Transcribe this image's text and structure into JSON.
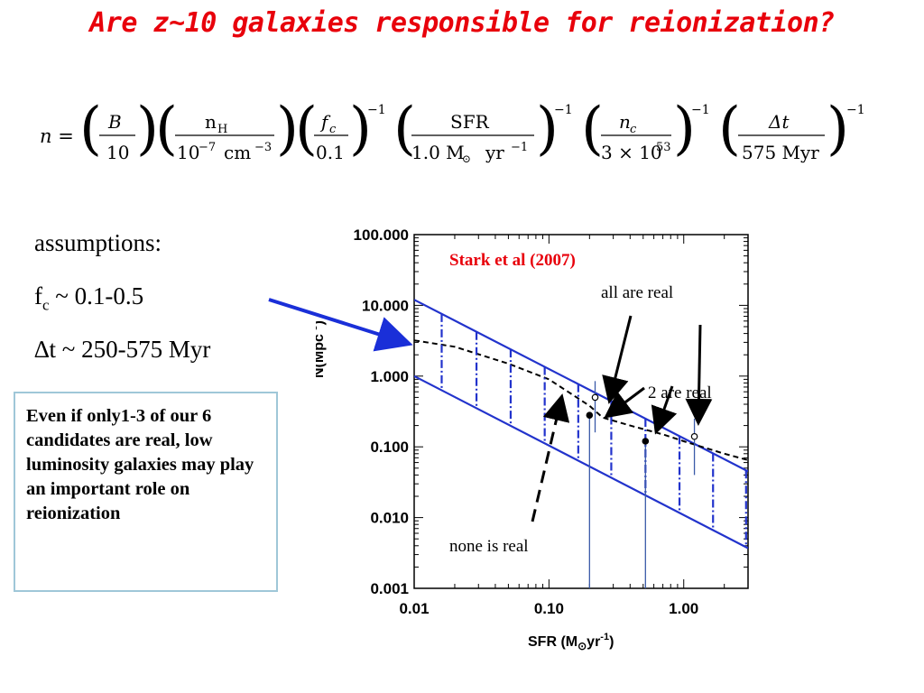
{
  "slide": {
    "title": "Are z~10 galaxies responsible for reionization?"
  },
  "formula": {
    "lhs": "n =",
    "terms": [
      {
        "num": "B",
        "den": "10",
        "exp": ""
      },
      {
        "num": "n",
        "num_sub": "H",
        "den": "10",
        "den_sup": "−7",
        "den_unit": "cm",
        "den_unit_sup": "−3",
        "exp": ""
      },
      {
        "num": "f",
        "num_sub": "c",
        "den": "0.1",
        "exp": "−1"
      },
      {
        "num": "SFR",
        "den": "1.0 M",
        "den_sub": "⊙",
        "den_unit": "yr",
        "den_unit_sup": "−1",
        "exp": "−1"
      },
      {
        "num": "n",
        "num_sub": "c",
        "den": "3 × 10",
        "den_sup": "53",
        "exp": "−1"
      },
      {
        "num": "Δt",
        "den": "575 Myr",
        "exp": "−1"
      }
    ]
  },
  "assumptions": {
    "heading": "assumptions:",
    "fc_label": "f",
    "fc_sub": "c",
    "fc_value": "~ 0.1-0.5",
    "dt": "∆t ~ 250-575 Myr"
  },
  "note": {
    "text": "Even if only1-3 of our 6 candidates are real, low luminosity galaxies may play an important role on reionization"
  },
  "chart_data": {
    "type": "line",
    "xscale": "log",
    "yscale": "log",
    "xlim": [
      0.01,
      3.0
    ],
    "ylim": [
      0.001,
      100
    ],
    "xticks": [
      "0.01",
      "0.10",
      "1.00"
    ],
    "yticks": [
      "0.001",
      "0.010",
      "0.100",
      "1.000",
      "10.000",
      "100.000"
    ],
    "xlabel": "SFR (M",
    "xlabel_sub": "⊙",
    "xlabel_end": "yr",
    "xlabel_sup": "-1",
    "xlabel_close": ")",
    "ylabel": "N(Mpc",
    "ylabel_sup": "-3",
    "ylabel_close": ")",
    "series": [
      {
        "style": "solid",
        "color": "#2233cc",
        "x": [
          0.01,
          3.0
        ],
        "y": [
          12.0,
          0.045
        ]
      },
      {
        "style": "solid",
        "color": "#2233cc",
        "x": [
          0.01,
          3.0
        ],
        "y": [
          1.0,
          0.0037
        ]
      },
      {
        "style": "dashed",
        "color": "#000000",
        "x": [
          0.01,
          0.02,
          0.05,
          0.1,
          0.2,
          0.25,
          0.4,
          0.7,
          1.0,
          2.0,
          3.0
        ],
        "y": [
          3.2,
          2.6,
          1.5,
          0.9,
          0.38,
          0.26,
          0.2,
          0.15,
          0.12,
          0.08,
          0.065
        ]
      },
      {
        "style": "dashdot",
        "color": "#2233cc",
        "x_lines": [
          0.016,
          0.029,
          0.052,
          0.093,
          0.165,
          0.29,
          0.52,
          0.93,
          1.65,
          2.9
        ]
      }
    ],
    "points": [
      {
        "x": 0.2,
        "y": 0.28,
        "filled": true,
        "yerr_low": 0.001,
        "yerr_high": 0.28
      },
      {
        "x": 0.22,
        "y": 0.5,
        "filled": false,
        "yerr_low": 0.16,
        "yerr_high": 0.85
      },
      {
        "x": 0.52,
        "y": 0.12,
        "filled": true,
        "yerr_low": 0.001,
        "yerr_high": 0.12
      },
      {
        "x": 1.2,
        "y": 0.14,
        "filled": false,
        "yerr_low": 0.04,
        "yerr_high": 0.25
      }
    ],
    "annotations": [
      {
        "text": "Stark et al (2007)",
        "color": "#e8000b"
      },
      {
        "text": "all are real",
        "color": "#000000"
      },
      {
        "text": "2 are real",
        "color": "#000000"
      },
      {
        "text": "none is real",
        "color": "#000000"
      }
    ]
  }
}
